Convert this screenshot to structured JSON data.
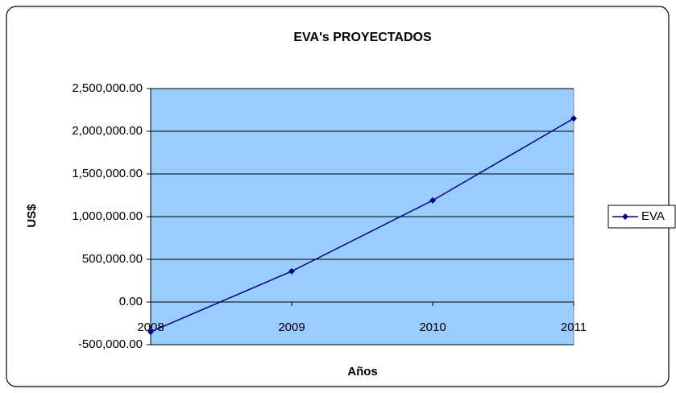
{
  "chart_data": {
    "type": "line",
    "title": "EVA's  PROYECTADOS",
    "x_label": "Años",
    "y_label": "US$",
    "categories": [
      "2008",
      "2009",
      "2010",
      "2011"
    ],
    "series": [
      {
        "name": "EVA",
        "color": "#000080",
        "values": [
          -350000,
          360000,
          1190000,
          2150000
        ]
      }
    ],
    "ylim": [
      -500000,
      2500000
    ],
    "yticks": [
      {
        "value": -500000,
        "label": "-500,000.00"
      },
      {
        "value": 0,
        "label": "0.00"
      },
      {
        "value": 500000,
        "label": "500,000.00"
      },
      {
        "value": 1000000,
        "label": "1,000,000.00"
      },
      {
        "value": 1500000,
        "label": "1,500,000.00"
      },
      {
        "value": 2000000,
        "label": "2,000,000.00"
      },
      {
        "value": 2500000,
        "label": "2,500,000.00"
      }
    ],
    "grid": true,
    "plot_background": "#99ccff",
    "legend": "right"
  }
}
